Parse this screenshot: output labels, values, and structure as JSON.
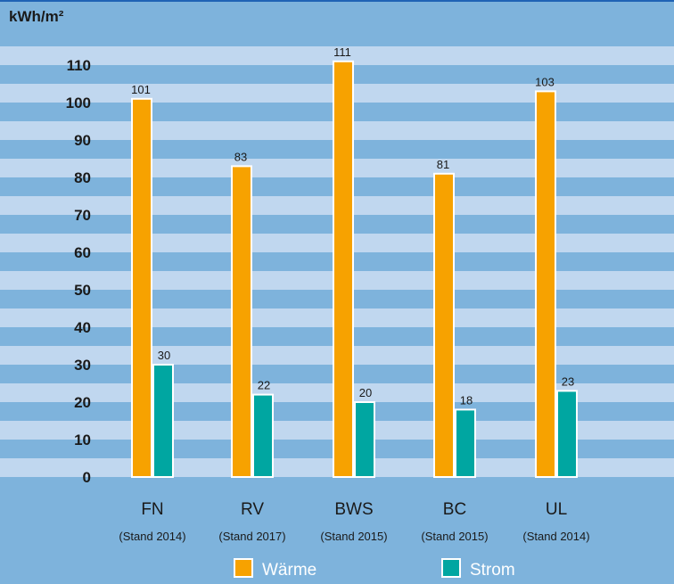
{
  "chart_data": {
    "type": "bar",
    "ylabel": "kWh/m²",
    "y_ticks": [
      0,
      10,
      20,
      30,
      40,
      50,
      60,
      70,
      80,
      90,
      100,
      110
    ],
    "ylim": [
      0,
      115
    ],
    "categories": [
      "FN",
      "RV",
      "BWS",
      "BC",
      "UL"
    ],
    "subcategories": [
      "(Stand 2014)",
      "(Stand 2017)",
      "(Stand 2015)",
      "(Stand 2015)",
      "(Stand 2014)"
    ],
    "series": [
      {
        "name": "Wärme",
        "color": "#f7a200",
        "values": [
          101,
          83,
          111,
          81,
          103
        ]
      },
      {
        "name": "Strom",
        "color": "#00a6a1",
        "values": [
          30,
          22,
          20,
          18,
          23
        ]
      }
    ],
    "grid": "alternating horizontal bands",
    "legend_position": "bottom",
    "colors": {
      "background": "#7eb3dc",
      "band_light": "#c0d7ef",
      "band_dark": "#7eb3dc",
      "frame": "#1f63b5"
    }
  }
}
